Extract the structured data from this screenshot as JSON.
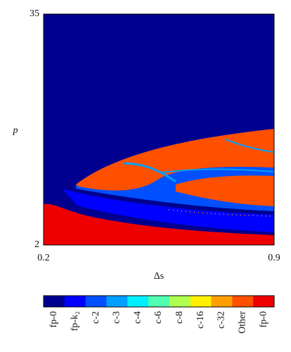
{
  "chart_data": {
    "type": "region-map",
    "xlabel": "Δs",
    "ylabel": "p",
    "xlim": [
      0.2,
      0.9
    ],
    "ylim": [
      2,
      35
    ],
    "xticks": [
      0.2,
      0.9
    ],
    "yticks": [
      2,
      35
    ],
    "legend": {
      "labels": [
        "fp-0",
        "fp-k₂",
        "c-2",
        "c-3",
        "c-4",
        "c-6",
        "c-8",
        "c-16",
        "c-32",
        "Other",
        "fp-0"
      ],
      "colors": [
        "#00008f",
        "#0000ff",
        "#0050ff",
        "#009fff",
        "#00efff",
        "#50ffaf",
        "#afff50",
        "#ffef00",
        "#ff9f00",
        "#ff5000",
        "#ef0000"
      ]
    }
  }
}
